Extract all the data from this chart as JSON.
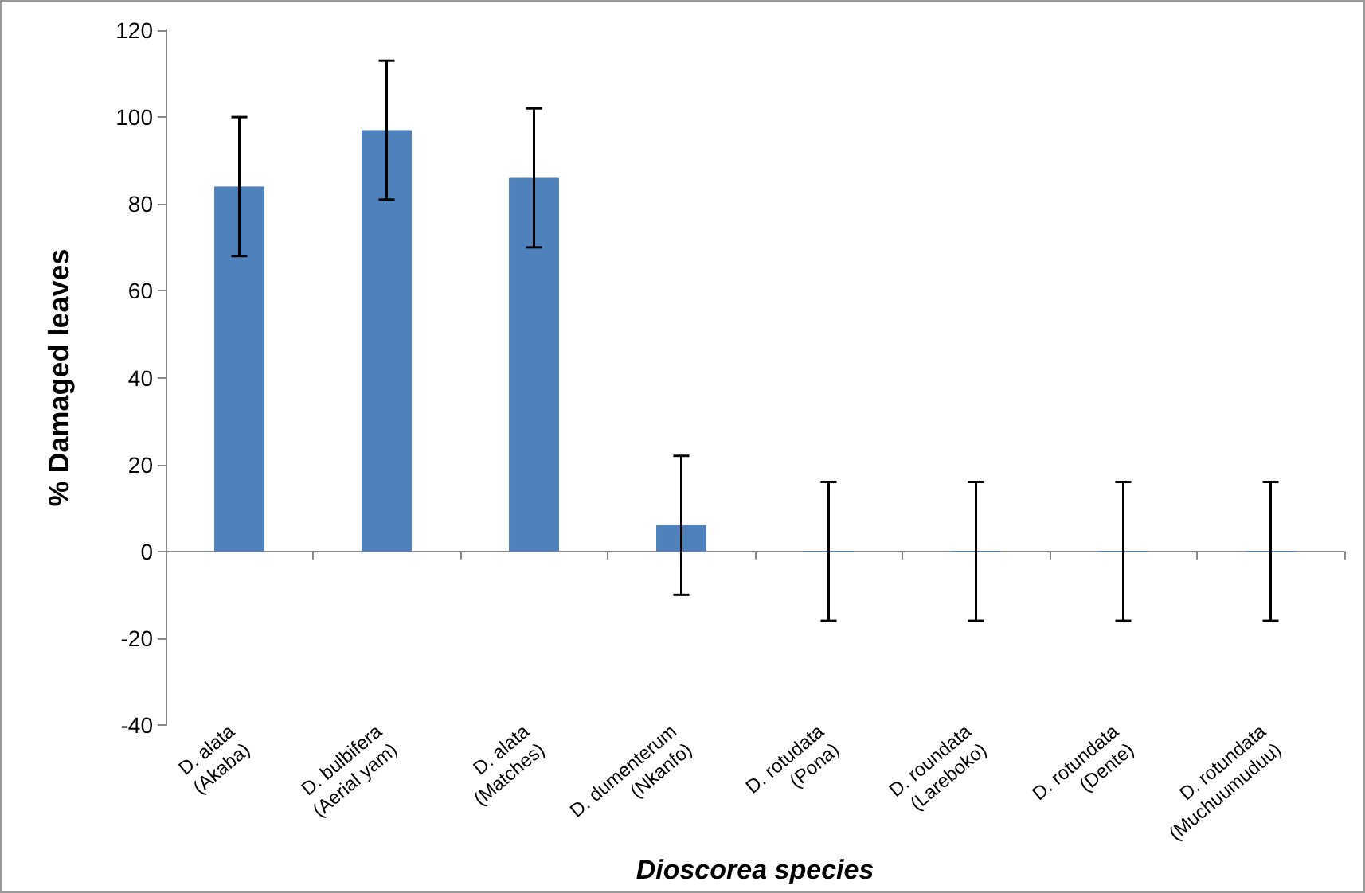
{
  "chart_data": {
    "type": "bar",
    "xlabel": "Dioscorea species",
    "ylabel": "% Damaged leaves",
    "categories": [
      "D. alata\n(Akaba)",
      "D. bulbifera\n(Aerial yam)",
      "D. alata\n(Matches)",
      "D. dumenterum\n(Nkanfo)",
      "D. rotudata\n(Pona)",
      "D. roundata\n(Lareboko)",
      "D. rotundata\n(Dente)",
      "D. rotundata\n(Muchuumuduu)"
    ],
    "values": [
      84,
      97,
      86,
      6,
      0,
      0,
      0,
      0
    ],
    "errors": [
      16,
      16,
      16,
      16,
      16,
      16,
      16,
      16
    ],
    "color": "#4f81bd",
    "ylim": [
      -40,
      120
    ],
    "yticks": [
      -40,
      -20,
      0,
      20,
      40,
      60,
      80,
      100,
      120
    ]
  }
}
